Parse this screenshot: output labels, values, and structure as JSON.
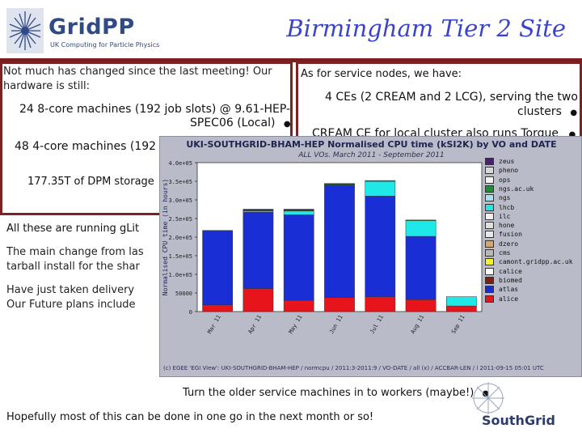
{
  "header": {
    "logo_name": "GridPP",
    "logo_sub": "UK Computing for Particle Physics",
    "title": "Birmingham Tier 2 Site"
  },
  "left_box": {
    "intro": [
      "Not much has changed since the last meeting! Our",
      "hardware is still:"
    ],
    "machines1": [
      "24 8-core machines (192 job slots) @ 9.61-HEP-",
      "SPEC06 (Local)"
    ],
    "machines2": "48 4-core machines (192",
    "storage": "177.35T of DPM storage",
    "running": "All these are running gLit",
    "change": [
      "The main change from las",
      "tarball install for the shar"
    ],
    "delivery": [
      "Have just taken delivery",
      "Our Future plans include"
    ]
  },
  "right_box": {
    "heading": "As for service nodes, we have:",
    "ces": [
      "4 CEs (2 CREAM and 2 LCG), serving the two",
      "clusters"
    ],
    "cream": "CREAM CE for local cluster also runs Torque"
  },
  "bullet": "●",
  "bottom": {
    "line1": "Turn the older service machines in to workers (maybe!)",
    "line2": "Hopefully most of this can be done in one go in the next month or so!",
    "southgrid": "SouthGrid"
  },
  "chart_footer": "(c) EGEE 'EGI View': UKI-SOUTHGRID-BHAM-HEP / normcpu / 2011:3-2011:9 / VO-DATE / all (x) / ACCBAR-LEN / i          2011-09-15 05:01 UTC",
  "chart_data": {
    "type": "bar",
    "title": "UKI-SOUTHGRID-BHAM-HEP  Normalised CPU time (kSI2K) by VO and DATE",
    "subtitle": "ALL VOs. March 2011 - September 2011",
    "ylabel": "Normalised CPU time (in hours)",
    "ylim": [
      0,
      400000
    ],
    "yticks": [
      "0",
      "50000",
      "1.0e+05",
      "1.5e+05",
      "2.0e+05",
      "2.5e+05",
      "3.0e+05",
      "3.5e+05",
      "4.0e+05"
    ],
    "categories": [
      "Mar 11",
      "Apr 11",
      "May 11",
      "Jun 11",
      "Jul 11",
      "Aug 11",
      "Sep 11"
    ],
    "series": [
      {
        "name": "alice",
        "color": "#e8141c",
        "values": [
          18000,
          62000,
          30000,
          38000,
          40000,
          32000,
          15000
        ]
      },
      {
        "name": "atlas",
        "color": "#1a2ed6",
        "values": [
          200000,
          205000,
          230000,
          302000,
          270000,
          170000,
          0
        ]
      },
      {
        "name": "biomed",
        "color": "#8a1a10",
        "values": [
          0,
          0,
          0,
          0,
          0,
          0,
          0
        ]
      },
      {
        "name": "calice",
        "color": "#ffffff",
        "values": [
          0,
          0,
          0,
          0,
          0,
          0,
          0
        ]
      },
      {
        "name": "camont.gridpp.ac.uk",
        "color": "#f4f428",
        "values": [
          0,
          0,
          0,
          0,
          0,
          0,
          0
        ]
      },
      {
        "name": "cms",
        "color": "#b8b8b8",
        "values": [
          0,
          0,
          0,
          0,
          0,
          0,
          0
        ]
      },
      {
        "name": "dzero",
        "color": "#d6a66a",
        "values": [
          0,
          0,
          0,
          0,
          0,
          0,
          0
        ]
      },
      {
        "name": "fusion",
        "color": "#e8e8e8",
        "values": [
          0,
          0,
          0,
          0,
          0,
          0,
          0
        ]
      },
      {
        "name": "hone",
        "color": "#e0e0e0",
        "values": [
          0,
          0,
          0,
          0,
          0,
          0,
          0
        ]
      },
      {
        "name": "ilc",
        "color": "#f2f2f2",
        "values": [
          0,
          0,
          0,
          0,
          0,
          0,
          0
        ]
      },
      {
        "name": "lhcb",
        "color": "#1ee8e8",
        "values": [
          0,
          3000,
          10000,
          0,
          40000,
          42000,
          25000
        ]
      },
      {
        "name": "ngs",
        "color": "#a8e0f8",
        "values": [
          0,
          0,
          0,
          0,
          0,
          0,
          0
        ]
      },
      {
        "name": "ngs.ac.uk",
        "color": "#1e8e3a",
        "values": [
          0,
          2000,
          2000,
          2000,
          2000,
          2000,
          0
        ]
      },
      {
        "name": "ops",
        "color": "#f2f2f2",
        "values": [
          0,
          0,
          0,
          0,
          0,
          0,
          0
        ]
      },
      {
        "name": "pheno",
        "color": "#d8d8d8",
        "values": [
          0,
          0,
          0,
          0,
          0,
          0,
          0
        ]
      },
      {
        "name": "zeus",
        "color": "#4a2070",
        "values": [
          0,
          3000,
          3000,
          2000,
          0,
          0,
          0
        ]
      }
    ]
  }
}
